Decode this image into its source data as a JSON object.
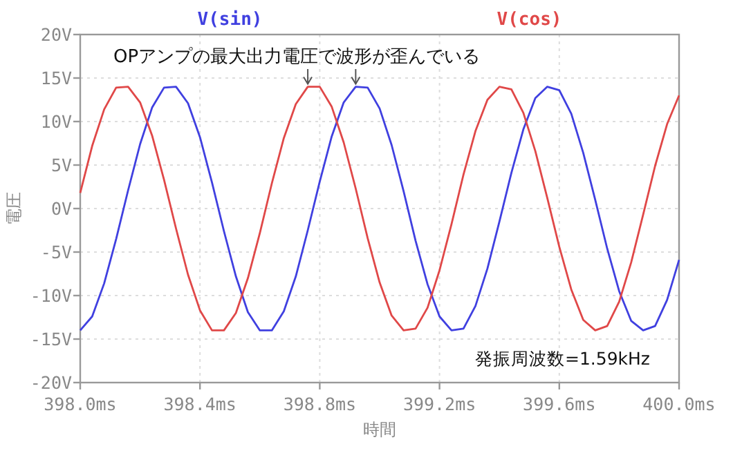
{
  "chart_data": {
    "type": "line",
    "xlabel": "時間",
    "ylabel": "電圧",
    "x": [
      398.0,
      398.04,
      398.08,
      398.12,
      398.16,
      398.2,
      398.24,
      398.28,
      398.32,
      398.36,
      398.4,
      398.44,
      398.48,
      398.52,
      398.56,
      398.6,
      398.64,
      398.68,
      398.72,
      398.76,
      398.8,
      398.84,
      398.88,
      398.92,
      398.96,
      399.0,
      399.04,
      399.08,
      399.12,
      399.16,
      399.2,
      399.24,
      399.28,
      399.32,
      399.36,
      399.4,
      399.44,
      399.48,
      399.52,
      399.56,
      399.6,
      399.64,
      399.68,
      399.72,
      399.76,
      399.8,
      399.84,
      399.88,
      399.92,
      399.96,
      400.0
    ],
    "series": [
      {
        "name": "V(sin)",
        "color": "#4040e0",
        "values": [
          -14,
          -12.4,
          -8.6,
          -3.5,
          2.1,
          7.4,
          11.6,
          13.9,
          14,
          12.1,
          8.2,
          3.0,
          -2.6,
          -7.8,
          -11.9,
          -14,
          -14,
          -11.8,
          -7.8,
          -2.5,
          3.1,
          8.3,
          12.2,
          14,
          13.9,
          11.5,
          7.3,
          2.0,
          -3.7,
          -8.7,
          -12.4,
          -14,
          -13.8,
          -11.2,
          -6.9,
          -1.5,
          4.1,
          9.1,
          12.7,
          14,
          13.6,
          10.9,
          6.4,
          1.0,
          -4.6,
          -9.5,
          -12.9,
          -14,
          -13.5,
          -10.5,
          -5.9
        ]
      },
      {
        "name": "V(cos)",
        "color": "#e04848",
        "values": [
          1.8,
          7.2,
          11.4,
          13.9,
          14,
          12.2,
          8.4,
          3.3,
          -2.3,
          -7.6,
          -11.7,
          -14,
          -14,
          -12.0,
          -8.0,
          -2.8,
          2.9,
          8.1,
          12.0,
          14,
          14,
          11.7,
          7.6,
          2.3,
          -3.4,
          -8.5,
          -12.3,
          -14,
          -13.8,
          -11.4,
          -7.1,
          -1.8,
          3.9,
          8.9,
          12.5,
          14,
          13.7,
          11.0,
          6.6,
          1.2,
          -4.4,
          -9.3,
          -12.8,
          -14,
          -13.5,
          -10.7,
          -6.2,
          -0.7,
          4.9,
          9.7,
          13.0
        ]
      }
    ],
    "xlim": [
      398.0,
      400.0
    ],
    "xticks": [
      {
        "value": 398.0,
        "label": "398.0ms"
      },
      {
        "value": 398.4,
        "label": "398.4ms"
      },
      {
        "value": 398.8,
        "label": "398.8ms"
      },
      {
        "value": 399.2,
        "label": "399.2ms"
      },
      {
        "value": 399.6,
        "label": "399.6ms"
      },
      {
        "value": 400.0,
        "label": "400.0ms"
      }
    ],
    "ylim": [
      -20,
      20
    ],
    "yticks": [
      {
        "value": -20,
        "label": "-20V"
      },
      {
        "value": -15,
        "label": "-15V"
      },
      {
        "value": -10,
        "label": "-10V"
      },
      {
        "value": -5,
        "label": "-5V"
      },
      {
        "value": 0,
        "label": "0V"
      },
      {
        "value": 5,
        "label": "5V"
      },
      {
        "value": 10,
        "label": "10V"
      },
      {
        "value": 15,
        "label": "15V"
      },
      {
        "value": 20,
        "label": "20V"
      }
    ],
    "grid": true,
    "legend": "top",
    "line_style": "solid",
    "annotations": [
      {
        "text": "OPアンプの最大出力電圧で波形が歪んでいる",
        "x": 398.78,
        "y": 14
      },
      "発振周波数=1.59kHz"
    ]
  }
}
